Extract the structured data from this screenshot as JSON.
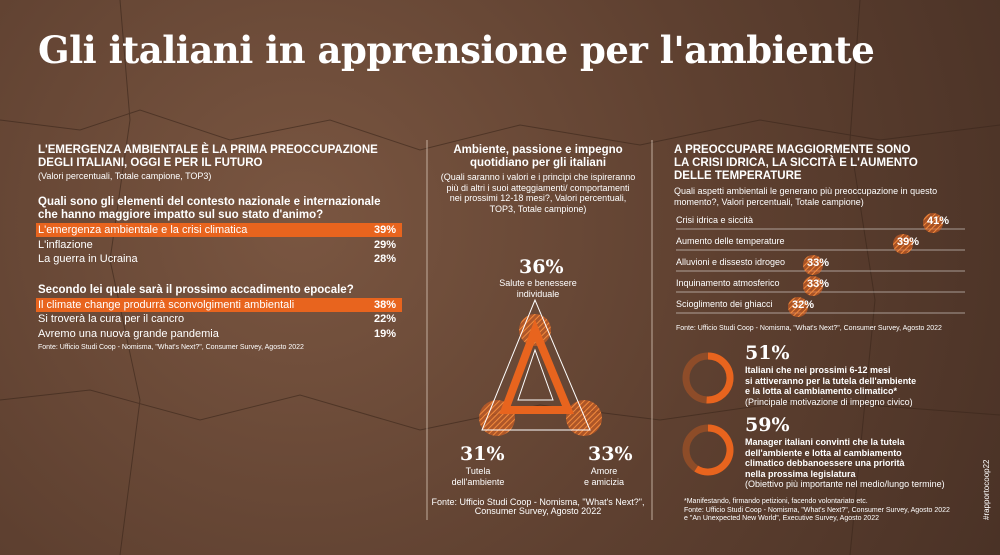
{
  "title": "Gli italiani in apprensione per l'ambiente",
  "left": {
    "heading": [
      "L'EMERGENZA AMBIENTALE È LA PRIMA PREOCCUPAZIONE",
      "DEGLI ITALIANI, OGGI E PER IL FUTURO"
    ],
    "note": "(Valori percentuali, Totale campione, TOP3)",
    "questions": [
      {
        "question": [
          "Quali sono gli elementi del contesto nazionale e internazionale",
          "che hanno maggiore impatto sul suo stato d'animo?"
        ],
        "rows": [
          {
            "label": "L'emergenza ambientale e la crisi climatica",
            "value": "39%"
          },
          {
            "label": "L'inflazione",
            "value": "29%"
          },
          {
            "label": "La guerra in Ucraina",
            "value": "28%"
          }
        ]
      },
      {
        "question": [
          "Secondo lei quale sarà il prossimo accadimento epocale?"
        ],
        "rows": [
          {
            "label": "Il climate change produrrà sconvolgimenti ambientali",
            "value": "38%"
          },
          {
            "label": "Si troverà la cura per il cancro",
            "value": "22%"
          },
          {
            "label": "Avremo una nuova grande pandemia",
            "value": "19%"
          }
        ]
      }
    ],
    "source": "Fonte: Ufficio Studi Coop - Nomisma, \"What's Next?\", Consumer Survey, Agosto 2022"
  },
  "middle": {
    "heading": [
      "Ambiente, passione e impegno",
      "quotidiano per gli italiani"
    ],
    "note": [
      "(Quali saranno i valori e i principi che ispireranno",
      "più di altri i suoi atteggiamenti/ comportamenti",
      "nei prossimi 12-18 mesi?, Valori percentuali,",
      "TOP3, Totale campione)"
    ],
    "top": {
      "value": "36%",
      "label": [
        "Salute e benessere",
        "individuale"
      ]
    },
    "left": {
      "value": "31%",
      "label": [
        "Tutela",
        "dell'ambiente"
      ]
    },
    "right": {
      "value": "33%",
      "label": [
        "Amore",
        "e amicizia"
      ]
    },
    "source": [
      "Fonte: Ufficio Studi Coop - Nomisma, \"What's Next?\",",
      "Consumer Survey, Agosto 2022"
    ]
  },
  "right": {
    "heading": [
      "A PREOCCUPARE MAGGIORMENTE SONO",
      "LA CRISI IDRICA, LA SICCITÀ E L'AUMENTO",
      "DELLE TEMPERATURE"
    ],
    "note": [
      "Quali aspetti ambientali le generano più preoccupazione in questo",
      "momento?, Valori percentuali, Totale campione)"
    ],
    "items": [
      {
        "name": "Crisi idrica e siccità",
        "value": 41,
        "label": "41%"
      },
      {
        "name": "Aumento delle temperature",
        "value": 39,
        "label": "39%"
      },
      {
        "name": "Alluvioni e dissesto idrogeo",
        "value": 33,
        "label": "33%"
      },
      {
        "name": "Inquinamento atmosferico",
        "value": 33,
        "label": "33%"
      },
      {
        "name": "Scioglimento dei ghiacci",
        "value": 32,
        "label": "32%"
      }
    ],
    "source": "Fonte: Ufficio Studi Coop - Nomisma, \"What's Next?\", Consumer Survey, Agosto 2022",
    "stats": [
      {
        "value": 51,
        "label": "51%",
        "text": [
          "Italiani che nei prossimi 6-12 mesi",
          "si attiveranno per la tutela dell'ambiente",
          "e la lotta  al cambiamento climatico*"
        ],
        "note": "(Principale motivazione  di impegno civico)"
      },
      {
        "value": 59,
        "label": "59%",
        "text": [
          "Manager italiani convinti che la tutela",
          "dell'ambiente e lotta al cambiamento",
          "climatico debbanoessere una priorità",
          "nella prossima legislatura"
        ],
        "note": "(Obiettivo più importante nel medio/lungo termine)"
      }
    ],
    "footnotes": [
      "*Manifestando, firmando petizioni, facendo volontariato etc.",
      "Fonte: Ufficio Studi Coop - Nomisma, \"What's Next?\", Consumer Survey, Agosto 2022",
      "e \"An Unexpected New World\", Executive Survey, Agosto 2022"
    ]
  },
  "hashtag": "#rapportocoop22"
}
